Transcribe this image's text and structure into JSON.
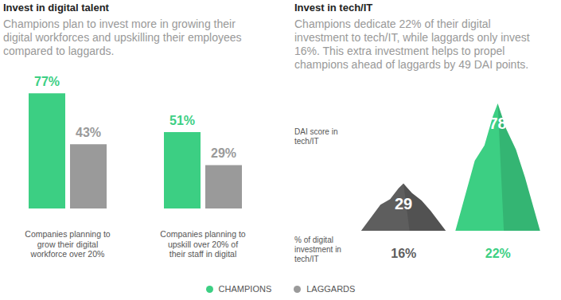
{
  "chart_data": [
    {
      "type": "bar",
      "title": "Invest in digital talent",
      "subtitle": "Champions plan to invest more in growing their digital workforces and upskilling their employees compared to laggards.",
      "categories": [
        "Companies planning to grow their digital workforce over 20%",
        "Companies planning to upskill over 20% of their staff in digital"
      ],
      "series": [
        {
          "name": "CHAMPIONS",
          "color": "#3ccf83",
          "values": [
            77,
            51
          ],
          "value_labels": [
            "77%",
            "51%"
          ]
        },
        {
          "name": "LAGGARDS",
          "color": "#9a9a9a",
          "values": [
            43,
            29
          ],
          "value_labels": [
            "43%",
            "29%"
          ]
        }
      ],
      "ylim": [
        0,
        100
      ],
      "data_labels": true,
      "tick_labels": "x",
      "legend": "bottom"
    },
    {
      "type": "bar",
      "title": "Invest in tech/IT",
      "subtitle": "Champions dedicate 22% of their digital investment to tech/IT, while laggards only invest 16%. This extra investment helps to propel champions ahead of laggards by 49 DAI points.",
      "y_label": "DAI score in tech/IT",
      "x_label": "% of digital investment in tech/IT",
      "categories": [
        "16%",
        "22%"
      ],
      "values": [
        29,
        78
      ],
      "colors": [
        "#5e5e5e",
        "#3ccf83"
      ],
      "ylim": [
        0,
        100
      ],
      "data_labels": true,
      "tick_labels": "x"
    }
  ]
}
